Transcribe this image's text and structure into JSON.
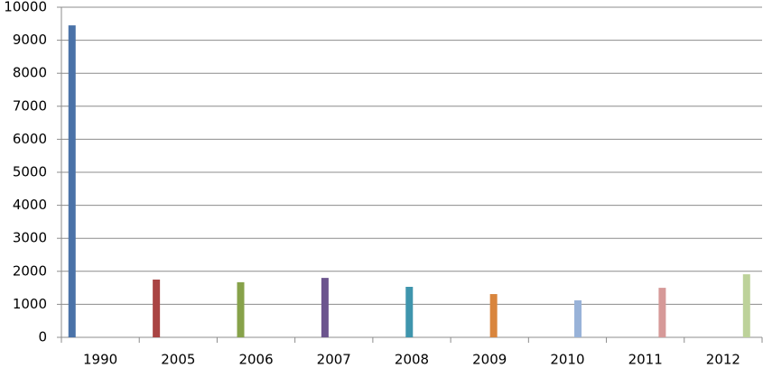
{
  "chart_data": {
    "type": "bar",
    "categories": [
      "1990",
      "2005",
      "2006",
      "2007",
      "2008",
      "2009",
      "2010",
      "2011",
      "2012"
    ],
    "values": [
      9450,
      1750,
      1670,
      1800,
      1530,
      1310,
      1120,
      1500,
      1910
    ],
    "colors": [
      "#4a72a8",
      "#a94443",
      "#87a24a",
      "#6c558e",
      "#3f95ad",
      "#d9853d",
      "#98b2d8",
      "#d69998",
      "#bdd29a"
    ],
    "ylim": [
      0,
      10000
    ],
    "yticks": [
      0,
      1000,
      2000,
      3000,
      4000,
      5000,
      6000,
      7000,
      8000,
      9000,
      10000
    ],
    "grid": true
  }
}
